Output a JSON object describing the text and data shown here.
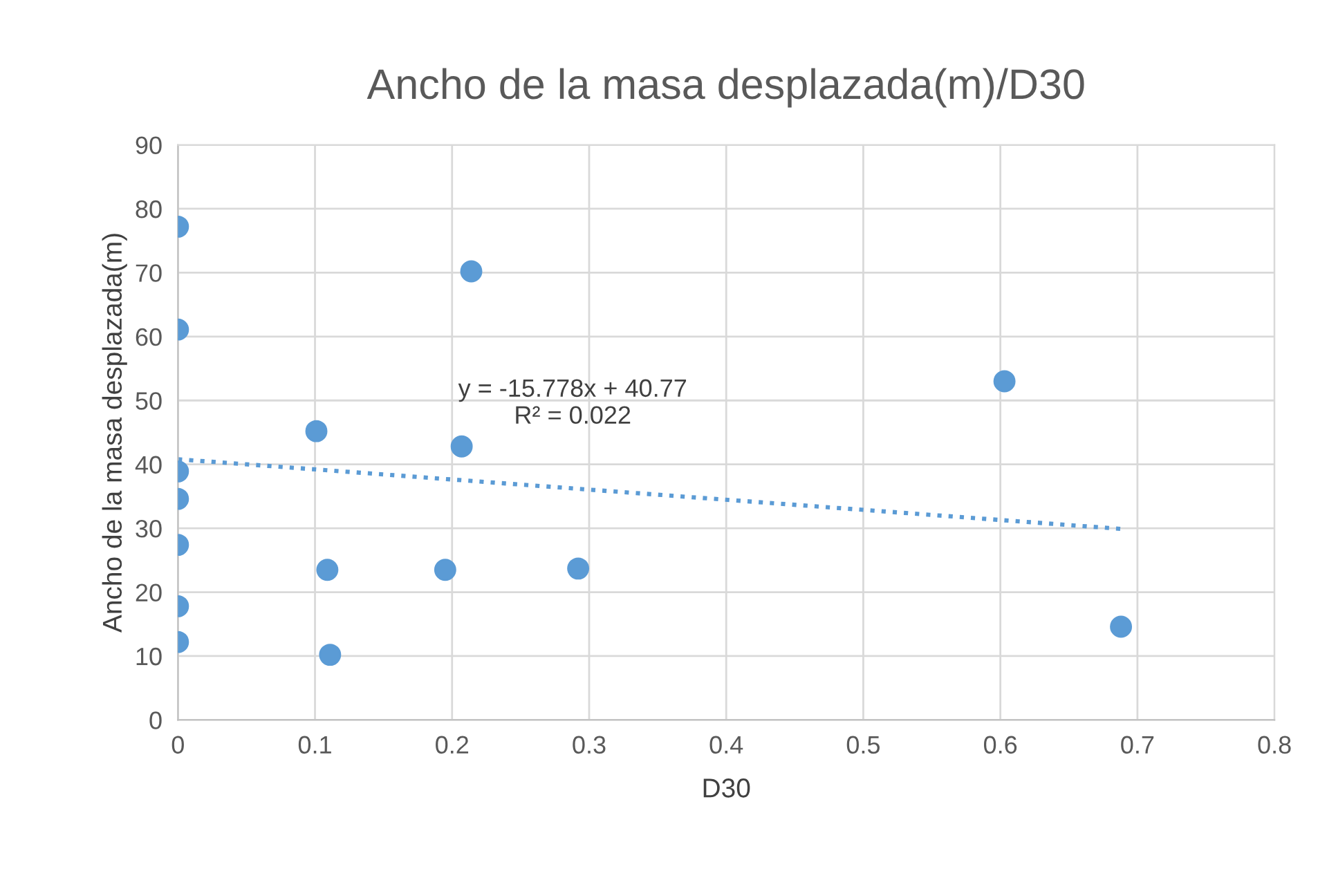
{
  "chart_data": {
    "type": "scatter",
    "title": "Ancho de la masa desplazada(m)/D30",
    "xlabel": "D30",
    "ylabel": "Ancho de la masa desplazada(m)",
    "xlim": [
      0,
      0.8
    ],
    "xticks": [
      0,
      0.1,
      0.2,
      0.3,
      0.4,
      0.5,
      0.6,
      0.7,
      0.8
    ],
    "ylim": [
      0,
      90
    ],
    "yticks": [
      0,
      10,
      20,
      30,
      40,
      50,
      60,
      70,
      80,
      90
    ],
    "grid": true,
    "legend": false,
    "marker": "circle",
    "annotations": [
      "y = -15.778x + 40.77\nR² = 0.022"
    ],
    "series": [
      {
        "color": "#5b9bd5",
        "x": [
          0,
          0,
          0,
          0,
          0,
          0,
          0,
          0.101,
          0.109,
          0.111,
          0.195,
          0.207,
          0.214,
          0.292,
          0.603,
          0.688
        ],
        "values": [
          77.2,
          61.1,
          38.9,
          34.6,
          27.4,
          17.8,
          12.2,
          45.2,
          23.5,
          10.2,
          23.5,
          42.8,
          70.2,
          23.7,
          53.0,
          14.6
        ]
      },
      {
        "type": "line",
        "color": "#5b9bd5",
        "line_style": "dotted",
        "marker": "none",
        "x": [
          0,
          0.688
        ],
        "values": [
          40.8,
          29.9
        ]
      }
    ]
  }
}
